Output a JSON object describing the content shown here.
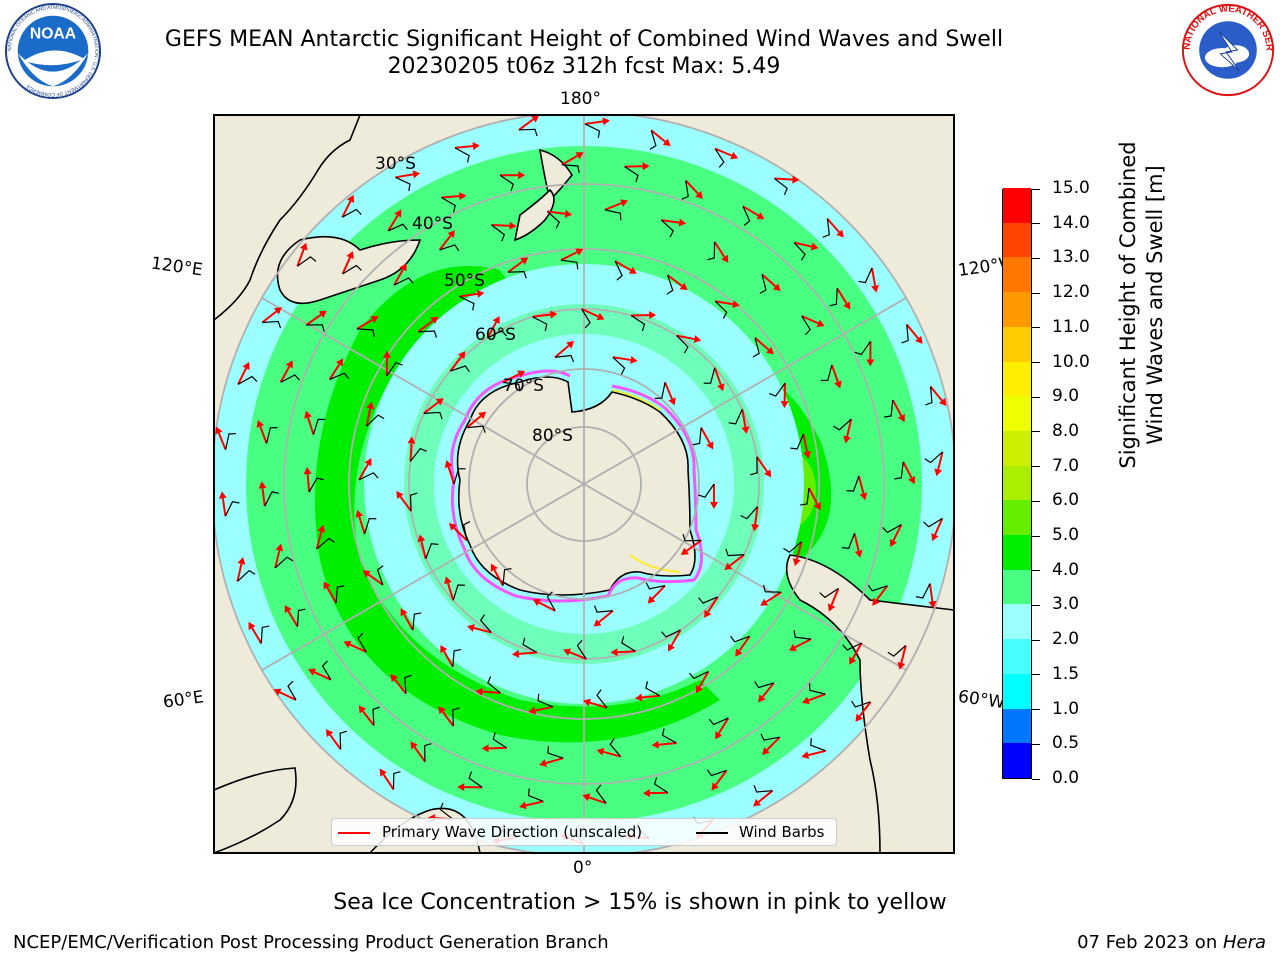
{
  "title": {
    "line1": "GEFS MEAN Antarctic Significant Height of Combined Wind Waves and Swell",
    "line2": "20230205 t06z 312h fcst   Max: 5.49"
  },
  "logos": {
    "noaa": "NOAA",
    "nws": "NATIONAL WEATHER SERVICE",
    "noaa_ring": "NATIONAL OCEANIC AND ATMOSPHERIC ADMINISTRATION · U.S. DEPARTMENT OF COMMERCE"
  },
  "map": {
    "longitude_labels": [
      "180°",
      "120°E",
      "120°W",
      "60°E",
      "60°W",
      "0°"
    ],
    "latitude_labels": [
      "30°S",
      "40°S",
      "50°S",
      "60°S",
      "70°S",
      "80°S"
    ]
  },
  "colorbar": {
    "title_line1": "Significant Height of Combined",
    "title_line2": "Wind Waves and Swell [m]",
    "ticks": [
      "0.0",
      "0.5",
      "1.0",
      "1.5",
      "2.0",
      "3.0",
      "4.0",
      "5.0",
      "6.0",
      "7.0",
      "8.0",
      "9.0",
      "10.0",
      "11.0",
      "12.0",
      "13.0",
      "14.0",
      "15.0"
    ],
    "colors": [
      "#0000ff",
      "#0077ff",
      "#00ffff",
      "#48ffff",
      "#9bffff",
      "#48ff82",
      "#00ee00",
      "#66ee00",
      "#aaee00",
      "#ccee00",
      "#eeff00",
      "#ffee00",
      "#ffcc00",
      "#ff9900",
      "#ff7700",
      "#ff4400",
      "#ff0000"
    ]
  },
  "legend": {
    "primary_wave": "Primary Wave Direction (unscaled)",
    "wind_barbs": "Wind Barbs"
  },
  "subtitle": "Sea Ice Concentration > 15% is shown in pink to yellow",
  "footer": {
    "left": "NCEP/EMC/Verification Post Processing Product Generation Branch",
    "right_prefix": "07 Feb 2023 on ",
    "right_italic": "Hera"
  }
}
